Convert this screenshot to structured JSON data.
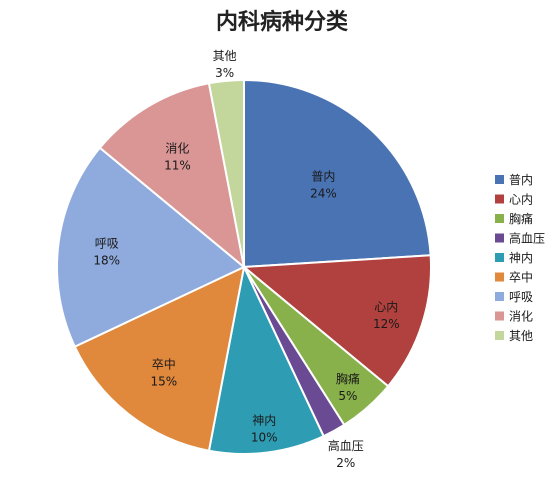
{
  "chart_data": {
    "type": "pie",
    "title": "内科病种分类",
    "legend_position": "right",
    "slices": [
      {
        "label": "普内",
        "value": 24,
        "value_label": "24%",
        "color": "#4a73b3"
      },
      {
        "label": "心内",
        "value": 12,
        "value_label": "12%",
        "color": "#b0413e"
      },
      {
        "label": "胸痛",
        "value": 5,
        "value_label": "5%",
        "color": "#88b04b"
      },
      {
        "label": "高血压",
        "value": 2,
        "value_label": "2%",
        "color": "#6a4a93"
      },
      {
        "label": "神内",
        "value": 10,
        "value_label": "10%",
        "color": "#2e9db3"
      },
      {
        "label": "卒中",
        "value": 15,
        "value_label": "15%",
        "color": "#e0883c"
      },
      {
        "label": "呼吸",
        "value": 18,
        "value_label": "18%",
        "color": "#8faadc"
      },
      {
        "label": "消化",
        "value": 11,
        "value_label": "11%",
        "color": "#d99694"
      },
      {
        "label": "其他",
        "value": 3,
        "value_label": "3%",
        "color": "#c3d69b"
      }
    ]
  }
}
